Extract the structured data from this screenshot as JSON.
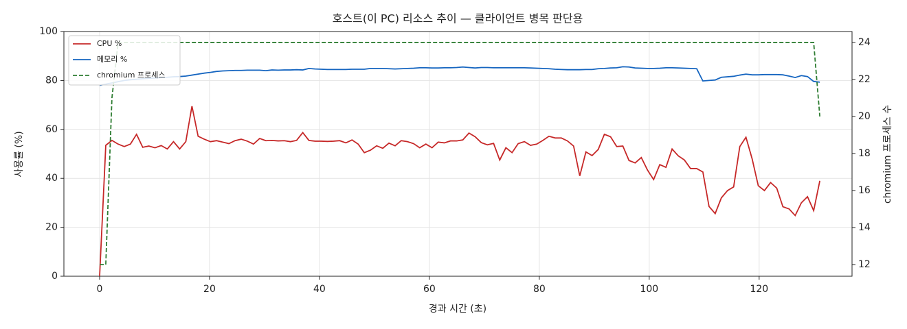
{
  "chart_data": {
    "type": "line",
    "title": "호스트(이 PC) 리소스 추이 — 클라이언트 병목 판단용",
    "x_label": "경과 시간 (초)",
    "y_label": "사용률 (%)",
    "y2_label": "chromium 프로세스 수",
    "xlim": [
      -6.5,
      136.9
    ],
    "xticks": [
      0,
      20,
      40,
      60,
      80,
      100,
      120
    ],
    "ylim": [
      0,
      100
    ],
    "yticks": [
      0,
      20,
      40,
      60,
      80,
      100
    ],
    "y2lim": [
      11.37,
      24.59
    ],
    "y2ticks": [
      12,
      14,
      16,
      18,
      20,
      22,
      24
    ],
    "grid": true,
    "legend": "upper-left",
    "x": [
      0,
      1.12,
      2.24,
      3.36,
      4.48,
      5.6,
      6.72,
      7.84,
      8.96,
      10.08,
      11.2,
      12.32,
      13.44,
      14.56,
      15.68,
      16.8,
      17.92,
      19.04,
      20.16,
      21.28,
      22.4,
      23.52,
      24.64,
      25.76,
      26.88,
      28,
      29.12,
      30.24,
      31.36,
      32.48,
      33.6,
      34.72,
      35.84,
      36.96,
      38.08,
      39.2,
      40.32,
      41.44,
      42.56,
      43.68,
      44.8,
      45.92,
      47.04,
      48.16,
      49.28,
      50.4,
      51.52,
      52.64,
      53.76,
      54.88,
      56,
      57.12,
      58.24,
      59.36,
      60.48,
      61.6,
      62.72,
      63.84,
      64.96,
      66.08,
      67.2,
      68.32,
      69.44,
      70.56,
      71.68,
      72.8,
      73.92,
      75.04,
      76.16,
      77.28,
      78.4,
      79.52,
      80.64,
      81.76,
      82.88,
      84,
      85.12,
      86.24,
      87.36,
      88.48,
      89.6,
      90.72,
      91.84,
      92.96,
      94.08,
      95.2,
      96.32,
      97.44,
      98.56,
      99.68,
      100.8,
      101.92,
      103.04,
      104.16,
      105.28,
      106.4,
      107.52,
      108.64,
      109.76,
      110.88,
      112,
      113.12,
      114.24,
      115.36,
      116.48,
      117.6,
      118.72,
      119.84,
      120.96,
      122.08,
      123.2,
      124.32,
      125.44,
      126.56,
      127.68,
      128.8,
      129.92,
      131.04
    ],
    "series": [
      {
        "name": "CPU %",
        "color": "#c62828",
        "dash": false,
        "values": [
          0,
          53.5,
          55.5,
          54,
          53,
          54,
          58,
          52.7,
          53.2,
          52.5,
          53.4,
          52,
          55,
          52,
          55,
          69.5,
          57.2,
          56,
          55,
          55.4,
          54.8,
          54.2,
          55.4,
          56,
          55.2,
          54,
          56.3,
          55.4,
          55.5,
          55.3,
          55.4,
          55,
          55.5,
          58.7,
          55.5,
          55.2,
          55.2,
          55.1,
          55.2,
          55.4,
          54.5,
          55.7,
          54,
          50.5,
          51.5,
          53.3,
          52.3,
          54.4,
          53.3,
          55.4,
          55,
          54.2,
          52.5,
          54,
          52.5,
          54.8,
          54.5,
          55.3,
          55.3,
          55.7,
          58.5,
          57,
          54.6,
          53.7,
          54.3,
          47.5,
          52.5,
          50.5,
          54.2,
          55,
          53.5,
          54,
          55.5,
          57.2,
          56.5,
          56.5,
          55.3,
          53.2,
          41,
          50.8,
          49.3,
          51.8,
          58,
          57,
          53,
          53.2,
          47.3,
          46.3,
          48.5,
          43.4,
          39.5,
          45.6,
          44.5,
          52,
          49.2,
          47.5,
          44,
          44,
          42.6,
          28.5,
          25.6,
          32,
          35,
          36.5,
          53,
          56.8,
          48,
          37,
          35,
          38.3,
          36,
          28.4,
          27.5,
          24.8,
          30,
          32.5,
          26.8,
          39
        ]
      },
      {
        "name": "메모리 %",
        "color": "#1565c0",
        "dash": false,
        "values": [
          78,
          78.5,
          79,
          79.5,
          80,
          80.3,
          80.5,
          80.7,
          80.9,
          81,
          81.2,
          81.3,
          81.5,
          81.6,
          81.8,
          82.2,
          82.6,
          83,
          83.3,
          83.7,
          83.9,
          84,
          84.1,
          84.1,
          84.2,
          84.2,
          84.2,
          84,
          84.3,
          84.2,
          84.3,
          84.3,
          84.4,
          84.3,
          84.9,
          84.7,
          84.6,
          84.5,
          84.5,
          84.5,
          84.5,
          84.6,
          84.6,
          84.6,
          84.9,
          84.9,
          84.9,
          84.8,
          84.7,
          84.8,
          84.9,
          85,
          85.2,
          85.2,
          85.1,
          85.1,
          85.2,
          85.2,
          85.3,
          85.5,
          85.3,
          85.1,
          85.3,
          85.3,
          85.2,
          85.2,
          85.2,
          85.2,
          85.2,
          85.2,
          85.1,
          85,
          84.9,
          84.8,
          84.6,
          84.5,
          84.4,
          84.4,
          84.4,
          84.5,
          84.5,
          84.8,
          84.9,
          85.1,
          85.2,
          85.6,
          85.5,
          85.1,
          85,
          84.9,
          84.9,
          85,
          85.2,
          85.2,
          85.1,
          85,
          84.9,
          84.8,
          79.8,
          80,
          80.2,
          81.3,
          81.5,
          81.7,
          82.2,
          82.6,
          82.3,
          82.3,
          82.4,
          82.4,
          82.4,
          82.3,
          81.8,
          81.2,
          82,
          81.6,
          79.6,
          79.3
        ]
      },
      {
        "name": "chromium 프로세스",
        "color": "#2e7d32",
        "dash": true,
        "axis": "y2",
        "values": [
          12,
          12,
          21,
          24,
          24,
          24,
          24,
          24,
          24,
          24,
          24,
          24,
          24,
          24,
          24,
          24,
          24,
          24,
          24,
          24,
          24,
          24,
          24,
          24,
          24,
          24,
          24,
          24,
          24,
          24,
          24,
          24,
          24,
          24,
          24,
          24,
          24,
          24,
          24,
          24,
          24,
          24,
          24,
          24,
          24,
          24,
          24,
          24,
          24,
          24,
          24,
          24,
          24,
          24,
          24,
          24,
          24,
          24,
          24,
          24,
          24,
          24,
          24,
          24,
          24,
          24,
          24,
          24,
          24,
          24,
          24,
          24,
          24,
          24,
          24,
          24,
          24,
          24,
          24,
          24,
          24,
          24,
          24,
          24,
          24,
          24,
          24,
          24,
          24,
          24,
          24,
          24,
          24,
          24,
          24,
          24,
          24,
          24,
          24,
          24,
          24,
          24,
          24,
          24,
          24,
          24,
          24,
          24,
          24,
          24,
          24,
          24,
          24,
          24,
          24,
          24,
          24,
          20
        ]
      }
    ]
  }
}
